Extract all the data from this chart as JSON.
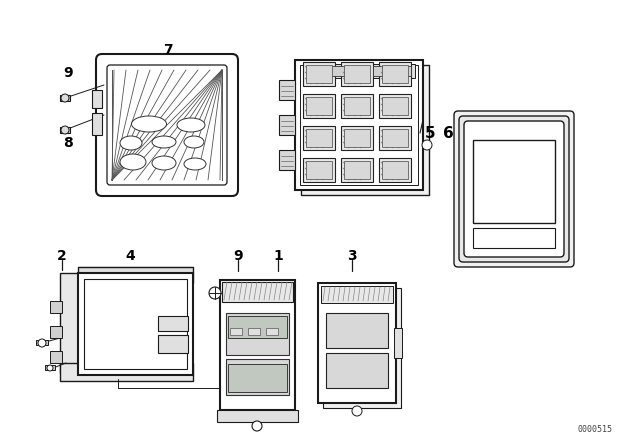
{
  "bg_color": "#ffffff",
  "line_color": "#1a1a1a",
  "watermark": "0000515",
  "figsize": [
    6.4,
    4.48
  ],
  "dpi": 100
}
